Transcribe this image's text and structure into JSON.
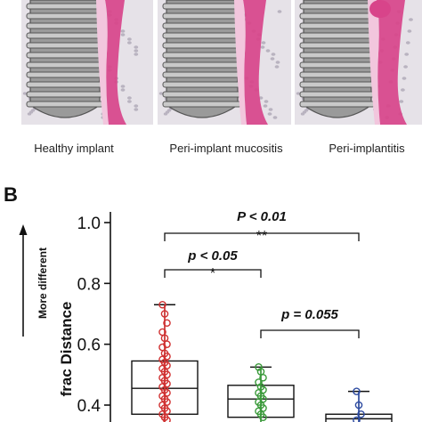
{
  "panel_a": {
    "labels": [
      "Healthy implant",
      "Peri-implant mucositis",
      "Peri-implantitis"
    ]
  },
  "panel_b": {
    "label": "B",
    "side_label": "More different",
    "comparisons": [
      {
        "text": "P < 0.01",
        "stars": "**"
      },
      {
        "text": "p < 0.05",
        "stars": "*"
      },
      {
        "text": "p = 0.055",
        "stars": ""
      }
    ]
  },
  "chart_data": {
    "type": "box",
    "ylabel": "frac Distance",
    "ylim": [
      0.33,
      1.0
    ],
    "yticks": [
      "1.0",
      "0.8",
      "0.6",
      "0.4"
    ],
    "ytick_values": [
      1.0,
      0.8,
      0.6,
      0.4
    ],
    "groups": [
      {
        "color": "#d03030",
        "whisker_low": 0.33,
        "q1": 0.37,
        "median": 0.455,
        "q3": 0.545,
        "whisker_high": 0.73,
        "points": [
          0.73,
          0.7,
          0.67,
          0.64,
          0.62,
          0.6,
          0.59,
          0.57,
          0.56,
          0.55,
          0.54,
          0.53,
          0.52,
          0.51,
          0.5,
          0.49,
          0.48,
          0.47,
          0.46,
          0.45,
          0.44,
          0.43,
          0.42,
          0.41,
          0.4,
          0.39,
          0.38,
          0.37,
          0.36,
          0.35
        ]
      },
      {
        "color": "#3a9a3a",
        "whisker_low": 0.33,
        "q1": 0.36,
        "median": 0.42,
        "q3": 0.465,
        "whisker_high": 0.525,
        "points": [
          0.525,
          0.51,
          0.49,
          0.475,
          0.46,
          0.45,
          0.44,
          0.43,
          0.42,
          0.41,
          0.4,
          0.39,
          0.38,
          0.37,
          0.36
        ]
      },
      {
        "color": "#2c4aa0",
        "whisker_low": 0.33,
        "q1": 0.34,
        "median": 0.355,
        "q3": 0.37,
        "whisker_high": 0.445,
        "points": [
          0.445,
          0.4,
          0.37,
          0.35
        ]
      }
    ]
  },
  "colors": {
    "gum": "#d8448a",
    "gum_light": "#f2c6dd",
    "bone": "#e6e2e8",
    "bone_dot": "#b9b3c0",
    "implant": "#9a9a9a",
    "implant_dark": "#555555"
  }
}
